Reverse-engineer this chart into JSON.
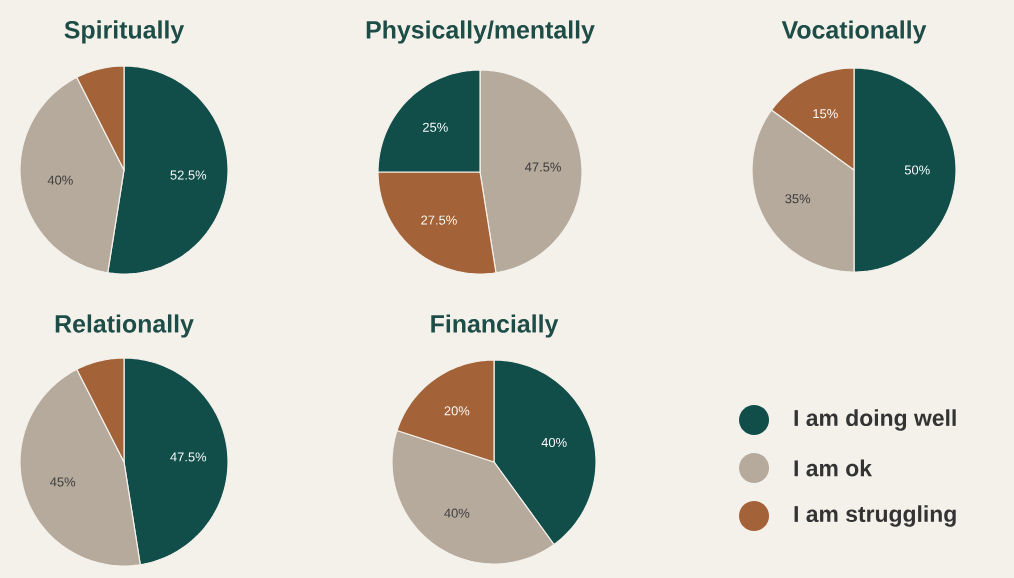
{
  "chart_data": [
    {
      "type": "pie",
      "title": "Spiritually",
      "values": [
        52.5,
        40,
        7.5
      ],
      "value_labels": [
        "52.5%",
        "40%",
        null
      ],
      "colors": [
        "#114e4a",
        "#b6aa9d",
        "#a36238"
      ]
    },
    {
      "type": "pie",
      "title": "Physically/mentally",
      "values": [
        47.5,
        27.5,
        25
      ],
      "value_labels": [
        "47.5%",
        "27.5%",
        "25%"
      ],
      "colors": [
        "#b6aa9d",
        "#a36238",
        "#114e4a"
      ]
    },
    {
      "type": "pie",
      "title": "Vocationally",
      "values": [
        50,
        35,
        15
      ],
      "value_labels": [
        "50%",
        "35%",
        "15%"
      ],
      "colors": [
        "#114e4a",
        "#b6aa9d",
        "#a36238"
      ]
    },
    {
      "type": "pie",
      "title": "Relationally",
      "values": [
        47.5,
        45,
        7.5
      ],
      "value_labels": [
        "47.5%",
        "45%",
        null
      ],
      "colors": [
        "#114e4a",
        "#b6aa9d",
        "#a36238"
      ]
    },
    {
      "type": "pie",
      "title": "Financially",
      "categories": [
        "I am doing well",
        "I am ok",
        "I am struggling"
      ],
      "values": [
        40,
        40,
        20
      ],
      "value_labels": [
        "40%",
        "40%",
        "20%"
      ],
      "colors": [
        "#114e4a",
        "#b6aa9d",
        "#a36238"
      ],
      "legend": "right"
    }
  ]
}
